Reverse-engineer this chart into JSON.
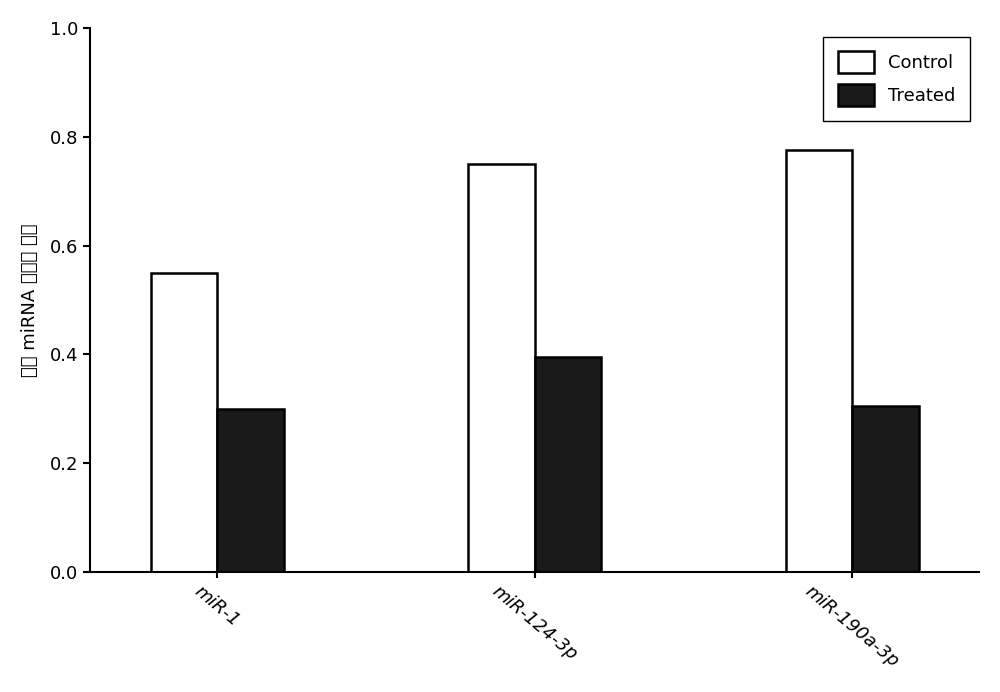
{
  "categories": [
    "miR-1",
    "miR-124-3p",
    "miR-190a-3p"
  ],
  "control_values": [
    0.55,
    0.75,
    0.775
  ],
  "treated_values": [
    0.3,
    0.395,
    0.305
  ],
  "control_color": "#ffffff",
  "treated_color": "#1a1a1a",
  "bar_edge_color": "#000000",
  "bar_width": 0.42,
  "ylim": [
    0,
    1.0
  ],
  "yticks": [
    0.0,
    0.2,
    0.4,
    0.6,
    0.8,
    1.0
  ],
  "ylabel_parts": [
    "睾丸 miRNA 表达中 位数"
  ],
  "ylabel_fontsize": 13,
  "xlabel_fontsize": 13,
  "tick_fontsize": 13,
  "legend_fontsize": 13,
  "legend_labels": [
    "Control",
    "Treated"
  ],
  "background_color": "#ffffff",
  "bar_linewidth": 1.8,
  "xtick_rotation": -40
}
